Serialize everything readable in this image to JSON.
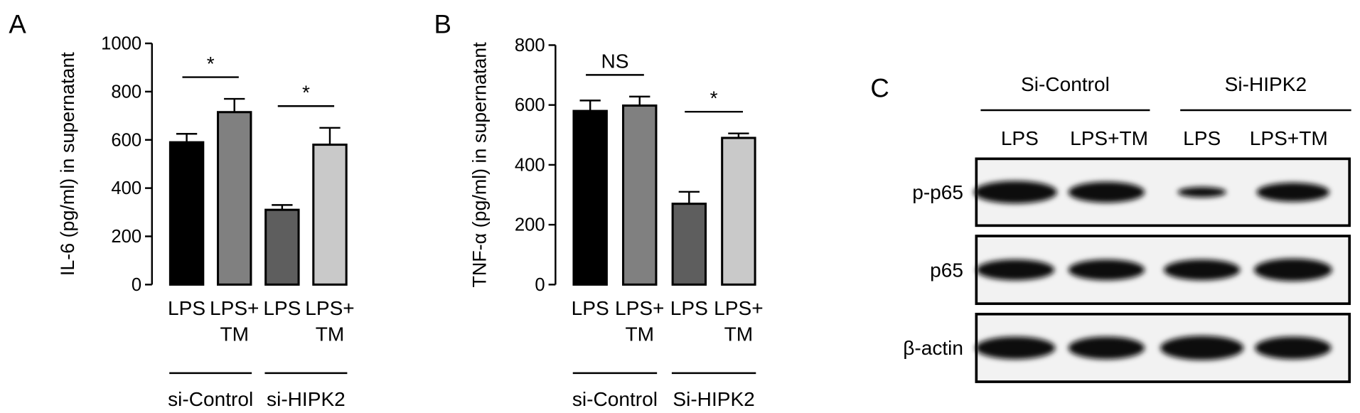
{
  "chart_data": [
    {
      "type": "bar",
      "panel": "A",
      "y_label": "IL-6 (pg/ml) in supernatant",
      "categories": [
        [
          "LPS"
        ],
        [
          "LPS+",
          "TM"
        ],
        [
          "LPS"
        ],
        [
          "LPS+",
          "TM"
        ]
      ],
      "values": [
        590,
        715,
        310,
        580
      ],
      "errors": [
        35,
        55,
        20,
        70
      ],
      "colors": [
        "#000000",
        "#808080",
        "#5e5e5e",
        "#c9c9c9"
      ],
      "groups": [
        "si-Control",
        "si-HIPK2"
      ],
      "annotations": [
        "*",
        "*"
      ],
      "ylim": [
        0,
        1000
      ],
      "yticks": [
        0,
        200,
        400,
        600,
        800,
        1000
      ]
    },
    {
      "type": "bar",
      "panel": "B",
      "y_label": "TNF-α (pg/ml) in supernatant",
      "categories": [
        [
          "LPS"
        ],
        [
          "LPS+",
          "TM"
        ],
        [
          "LPS"
        ],
        [
          "LPS+",
          "TM"
        ]
      ],
      "values": [
        580,
        598,
        270,
        490
      ],
      "errors": [
        35,
        30,
        40,
        15
      ],
      "colors": [
        "#000000",
        "#808080",
        "#5e5e5e",
        "#c9c9c9"
      ],
      "groups": [
        "si-Control",
        "Si-HIPK2"
      ],
      "annotations": [
        "NS",
        "*"
      ],
      "ylim": [
        0,
        800
      ],
      "yticks": [
        0,
        200,
        400,
        600,
        800
      ]
    }
  ],
  "blot": {
    "panel": "C",
    "groups": [
      "Si-Control",
      "Si-HIPK2"
    ],
    "lanes": [
      "LPS",
      "LPS+TM",
      "LPS",
      "LPS+TM"
    ],
    "rows": [
      "p-p65",
      "p65",
      "β-actin"
    ]
  }
}
